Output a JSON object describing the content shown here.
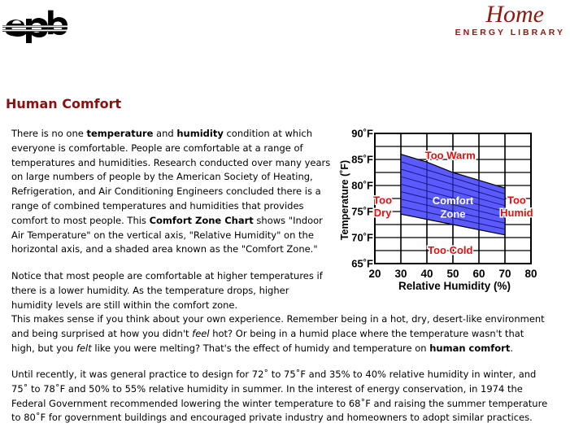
{
  "header": {
    "logo_text": "epb",
    "brand_title": "Home",
    "brand_subtitle": "ENERGY LIBRARY"
  },
  "page": {
    "title": "Human Comfort"
  },
  "paragraphs": {
    "p1": [
      {
        "t": "There is no one "
      },
      {
        "t": "temperature",
        "b": true
      },
      {
        "t": " and "
      },
      {
        "t": "humidity",
        "b": true
      },
      {
        "t": " condition at which everyone is comfortable. People are comfortable at a range of temperatures and humidities. Research conducted over many years on large numbers of people by the American Society of Heating, Refrigeration, and Air Conditioning Engineers concluded there is a range of combined temperatures and humidities that provides comfort to most people. This "
      },
      {
        "t": "Comfort Zone Chart",
        "b": true
      },
      {
        "t": " shows \"Indoor Air Temperature\" on the vertical axis, \"Relative Humidity\" on the horizontal axis, and a shaded area known as the \"Comfort Zone.\""
      }
    ],
    "p2_wrapped": "Notice that most people are comfortable at higher temperatures if there is a lower humidity. As the temperature drops, higher humidity levels are still within the comfort zone.",
    "p2": [
      {
        "t": " This makes sense if you think about your own experience. Remember being in a hot, dry, desert-like environment and being surprised at how you didn't "
      },
      {
        "t": "feel",
        "i": true
      },
      {
        "t": " hot? Or being in a humid place where the temperature wasn't that high, but you "
      },
      {
        "t": "felt",
        "i": true
      },
      {
        "t": " like you were melting? That's the effect of humidy and temperature on "
      },
      {
        "t": "human comfort",
        "b": true
      },
      {
        "t": "."
      }
    ],
    "p3": [
      {
        "t": "Until recently, it was general practice to design for 72˚ to 75˚F and 35% to 40% relative humidity in winter, and 75˚ to 78˚F and 50% to 55% relative humidity in summer. In the interest of energy conservation, in 1974 the Federal Government recommended lowering the winter temperature to 68˚F and raising the summer temperature to 80˚F for government buildings and encouraged private industry and homeowners to adopt similar practices."
      }
    ]
  },
  "chart_data": {
    "type": "area",
    "ylabel": "Temperature (˚F)",
    "xlabel": "Relative Humidity (%)",
    "x_ticks": [
      "20",
      "30",
      "40",
      "50",
      "60",
      "70",
      "80"
    ],
    "y_ticks": [
      "90˚F",
      "85˚F",
      "80˚F",
      "75˚F",
      "70˚F",
      "65˚F"
    ],
    "xlim": [
      20,
      80
    ],
    "ylim": [
      65,
      90
    ],
    "grid": true,
    "zone_upper": [
      [
        30,
        86
      ],
      [
        40,
        84.5
      ],
      [
        50,
        82.5
      ],
      [
        60,
        81
      ],
      [
        70,
        79.5
      ]
    ],
    "zone_lower": [
      [
        30,
        74.5
      ],
      [
        40,
        73.5
      ],
      [
        50,
        72.5
      ],
      [
        60,
        71.5
      ],
      [
        70,
        70.5
      ]
    ],
    "zone_color": "#5a5aff",
    "label_color": "#e01010",
    "annotations": [
      {
        "text": "Too Warm",
        "x": 49,
        "y": 85.8,
        "color": "#e01010"
      },
      {
        "text": "Too",
        "x": 23,
        "y": 77.2,
        "color": "#e01010"
      },
      {
        "text": "Dry",
        "x": 23,
        "y": 74.8,
        "color": "#e01010"
      },
      {
        "text": "Comfort",
        "x": 50,
        "y": 77.1,
        "color": "#ffffff"
      },
      {
        "text": "Zone",
        "x": 50,
        "y": 74.5,
        "color": "#ffffff"
      },
      {
        "text": "Too",
        "x": 74.5,
        "y": 77.2,
        "color": "#e01010"
      },
      {
        "text": "Humid",
        "x": 74.5,
        "y": 74.8,
        "color": "#e01010"
      },
      {
        "text": "Too Cold",
        "x": 49,
        "y": 67.6,
        "color": "#e01010"
      }
    ]
  }
}
